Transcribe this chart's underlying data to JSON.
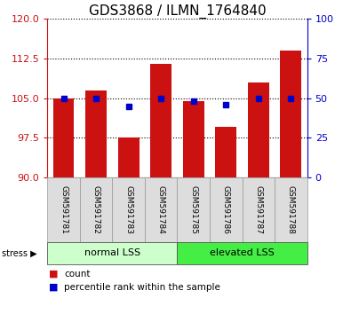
{
  "title": "GDS3868 / ILMN_1764840",
  "samples": [
    "GSM591781",
    "GSM591782",
    "GSM591783",
    "GSM591784",
    "GSM591785",
    "GSM591786",
    "GSM591787",
    "GSM591788"
  ],
  "red_values": [
    105.0,
    106.5,
    97.5,
    111.5,
    104.5,
    99.5,
    108.0,
    114.0
  ],
  "blue_values": [
    105.0,
    105.0,
    103.5,
    105.0,
    104.5,
    103.8,
    105.0,
    105.0
  ],
  "bar_bottom": 90,
  "ylim": [
    90,
    120
  ],
  "yticks": [
    90,
    97.5,
    105,
    112.5,
    120
  ],
  "right_yticks": [
    0,
    25,
    50,
    75,
    100
  ],
  "right_ylim": [
    0,
    100
  ],
  "bar_color": "#CC1111",
  "dot_color": "#0000CC",
  "group1_label": "normal LSS",
  "group2_label": "elevated LSS",
  "group1_color": "#CCFFCC",
  "group2_color": "#44EE44",
  "left_axis_color": "#CC1111",
  "right_axis_color": "#0000CC",
  "title_fontsize": 11,
  "tick_fontsize": 8,
  "bar_width": 0.65
}
